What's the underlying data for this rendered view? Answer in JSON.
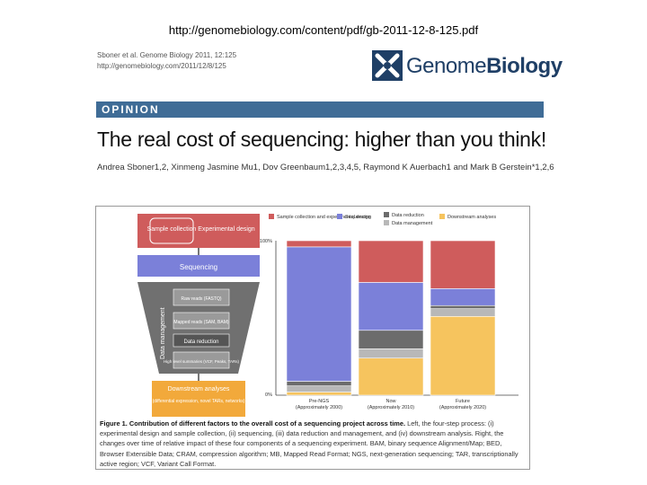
{
  "header": {
    "url": "http://genomebiology.com/content/pdf/gb-2011-12-8-125.pdf"
  },
  "citation": {
    "line1": "Sboner et al. Genome Biology 2011, 12:125",
    "line2": "http://genomebiology.com/2011/12/8/125"
  },
  "logo": {
    "word1": "Genome",
    "word2": "Biology",
    "colors": {
      "navy": "#1f3f66"
    }
  },
  "banner": {
    "label": "OPINION"
  },
  "article": {
    "title": "The real cost of sequencing: higher than you think!",
    "authors": "Andrea Sboner1,2, Xinmeng Jasmine Mu1, Dov Greenbaum1,2,3,4,5, Raymond K Auerbach1 and Mark B Gerstein*1,2,6"
  },
  "flow": {
    "sample_collection": "Sample collection",
    "experimental_design": "Experimental design",
    "sequencing": "Sequencing",
    "data_management": "Data management",
    "raw_reads": "Raw reads (FASTQ)",
    "mapped_reads": "Mapped reads (SAM, BAM)",
    "data_reduction": "Data reduction",
    "summaries": "High level summaries (VCF, Peaks, TARs)",
    "downstream": "Downstream analyses",
    "downstream_detail": "(differential expression, novel TARs, networks)"
  },
  "chart_data": {
    "type": "bar",
    "stacked": true,
    "y_top_label": "100%",
    "y_bottom_label": "0%",
    "ylim": [
      0,
      100
    ],
    "categories": [
      "Pre-NGS (Approximately 2000)",
      "Now (Approximately 2010)",
      "Future (Approximately 2020)"
    ],
    "series": [
      {
        "name": "Downstream analyses",
        "color": "#f6c45e",
        "values": [
          2,
          24,
          51
        ]
      },
      {
        "name": "Data management",
        "color": "#b8b8b8",
        "values": [
          4,
          6,
          5
        ]
      },
      {
        "name": "Data reduction",
        "color": "#6c6c6c",
        "values": [
          3,
          12,
          2
        ]
      },
      {
        "name": "Sequencing",
        "color": "#7b80d9",
        "values": [
          87,
          31,
          11
        ]
      },
      {
        "name": "Sample collection and experimental design",
        "color": "#cf5c5c",
        "values": [
          4,
          27,
          31
        ]
      }
    ],
    "legend_placement": "top"
  },
  "caption": {
    "bold": "Figure 1. Contribution of different factors to the overall cost of a sequencing project across time.",
    "text": " Left, the four-step process: (i) experimental design and sample collection, (ii) sequencing, (iii) data reduction and management, and (iv) downstream analysis. Right, the changes over time of relative impact of these four components of a sequencing experiment. BAM, binary sequence Alignment/Map; BED, Browser Extensible Data; CRAM, compression algorithm; MB, Mapped Read Format; NGS, next-generation sequencing; TAR, transcriptionally active region; VCF, Variant Call Format."
  }
}
